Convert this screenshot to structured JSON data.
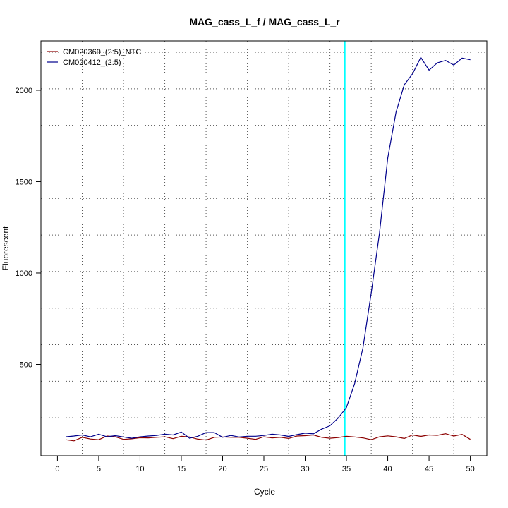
{
  "chart_data": {
    "type": "line",
    "title": "MAG_cass_L_f / MAG_cass_L_r",
    "xlabel": "Cycle",
    "ylabel": "Fluorescent",
    "xlim": [
      -2,
      52
    ],
    "ylim": [
      0,
      2270
    ],
    "xticks": [
      0,
      5,
      10,
      15,
      20,
      25,
      30,
      35,
      40,
      45,
      50
    ],
    "yticks": [
      500,
      1000,
      1500,
      2000
    ],
    "vgrid": [
      3,
      8,
      13,
      18,
      23,
      28,
      33,
      38,
      43,
      48
    ],
    "hgrid": [
      208,
      408,
      608,
      808,
      1008,
      1208,
      1408,
      1608,
      1808,
      2008,
      2208
    ],
    "grid": true,
    "legend_position": "top-left",
    "threshold_line": {
      "x": 34.8,
      "color": "#00ffff"
    },
    "series": [
      {
        "name": "CM020369_(2:5)_NTC",
        "color": "#8b0000",
        "x": [
          1,
          2,
          3,
          4,
          5,
          6,
          7,
          8,
          9,
          10,
          11,
          12,
          13,
          14,
          15,
          16,
          17,
          18,
          19,
          20,
          21,
          22,
          23,
          24,
          25,
          26,
          27,
          28,
          29,
          30,
          31,
          32,
          33,
          34,
          35,
          36,
          37,
          38,
          39,
          40,
          41,
          42,
          43,
          44,
          45,
          46,
          47,
          48,
          49,
          50
        ],
        "values": [
          88,
          82,
          101,
          92,
          88,
          108,
          104,
          90,
          93,
          99,
          98,
          101,
          104,
          94,
          107,
          103,
          91,
          86,
          101,
          103,
          101,
          101,
          96,
          90,
          104,
          98,
          101,
          95,
          108,
          110,
          114,
          101,
          96,
          100,
          107,
          103,
          98,
          88,
          104,
          109,
          104,
          95,
          114,
          106,
          114,
          112,
          121,
          108,
          117,
          90
        ]
      },
      {
        "name": "CM020412_(2:5)",
        "color": "#00008b",
        "x": [
          1,
          2,
          3,
          4,
          5,
          6,
          7,
          8,
          9,
          10,
          11,
          12,
          13,
          14,
          15,
          16,
          17,
          18,
          19,
          20,
          21,
          22,
          23,
          24,
          25,
          26,
          27,
          28,
          29,
          30,
          31,
          32,
          33,
          34,
          35,
          36,
          37,
          38,
          39,
          40,
          41,
          42,
          43,
          44,
          45,
          46,
          47,
          48,
          49,
          50
        ],
        "values": [
          104,
          108,
          114,
          104,
          118,
          104,
          110,
          103,
          96,
          104,
          108,
          111,
          118,
          114,
          130,
          96,
          107,
          127,
          127,
          101,
          111,
          103,
          107,
          107,
          111,
          118,
          114,
          106,
          116,
          124,
          120,
          146,
          164,
          207,
          264,
          396,
          590,
          890,
          1220,
          1630,
          1880,
          2030,
          2090,
          2180,
          2110,
          2150,
          2163,
          2138,
          2176,
          2167
        ]
      }
    ]
  }
}
